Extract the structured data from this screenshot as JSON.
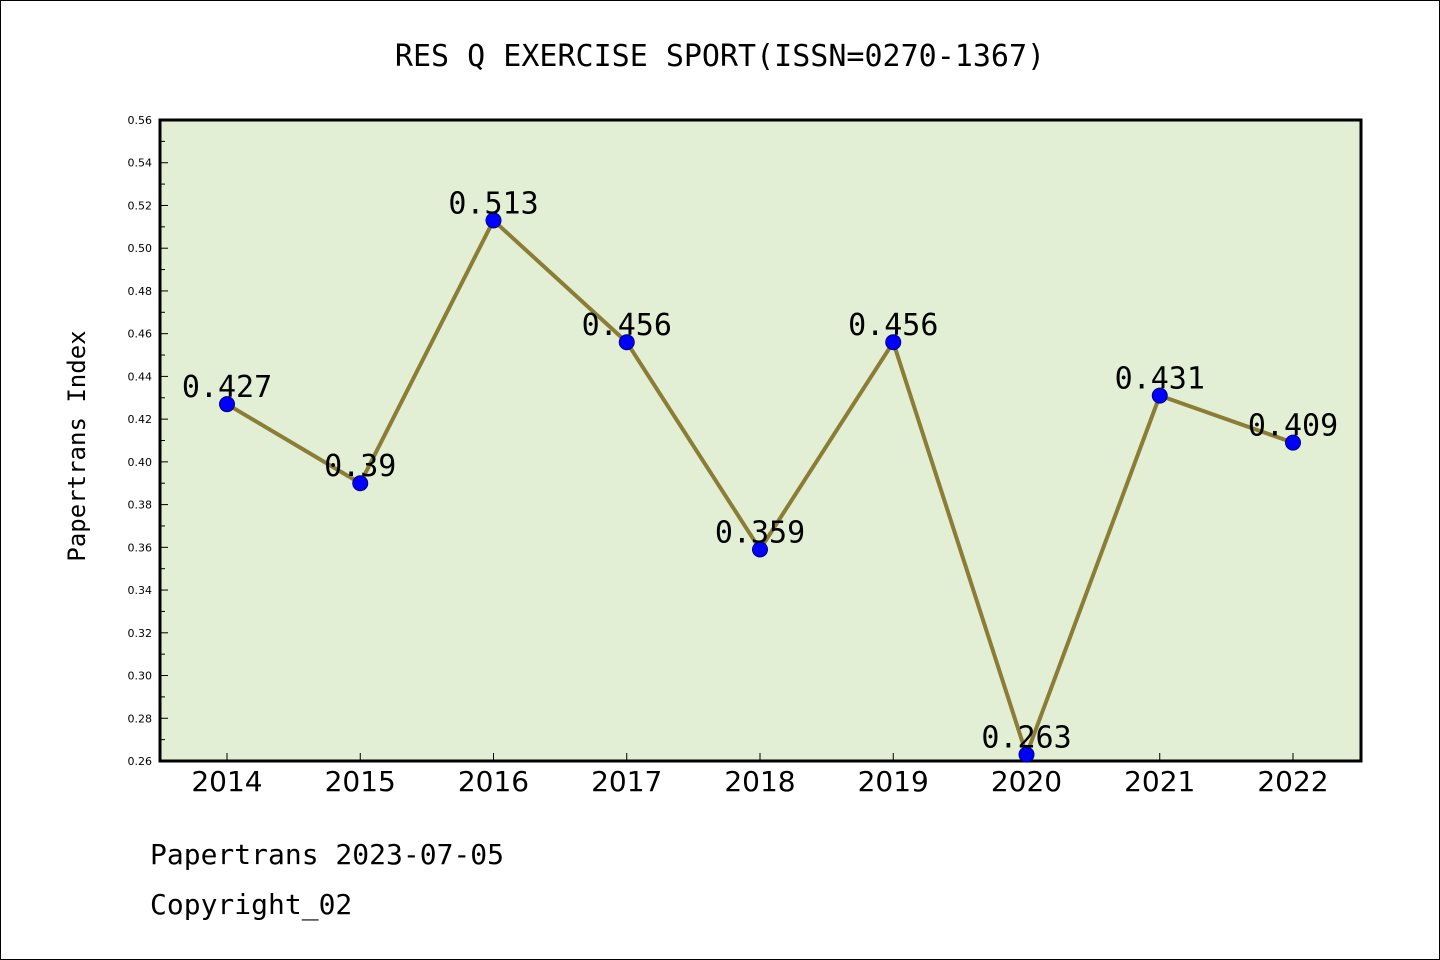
{
  "chart_data": {
    "type": "line",
    "title": "RES Q EXERCISE SPORT(ISSN=0270-1367)",
    "ylabel": "Papertrans Index",
    "xlabel": "",
    "categories": [
      "2014",
      "2015",
      "2016",
      "2017",
      "2018",
      "2019",
      "2020",
      "2021",
      "2022"
    ],
    "values": [
      0.427,
      0.39,
      0.513,
      0.456,
      0.359,
      0.456,
      0.263,
      0.431,
      0.409
    ],
    "data_labels": [
      "0.427",
      "0.39",
      "0.513",
      "0.456",
      "0.359",
      "0.456",
      "0.263",
      "0.431",
      "0.409"
    ],
    "ylim": [
      0.26,
      0.56
    ],
    "yticks": [
      "0.26",
      "0.28",
      "0.30",
      "0.32",
      "0.34",
      "0.36",
      "0.38",
      "0.40",
      "0.42",
      "0.44",
      "0.46",
      "0.48",
      "0.50",
      "0.52",
      "0.54",
      "0.56"
    ],
    "grid": false,
    "colors": {
      "plot_background": "#e2efd5",
      "line": "#8b7d35",
      "marker": "#0000ff"
    }
  },
  "footer": {
    "line1": "Papertrans 2023-07-05",
    "line2": "Copyright_02"
  }
}
